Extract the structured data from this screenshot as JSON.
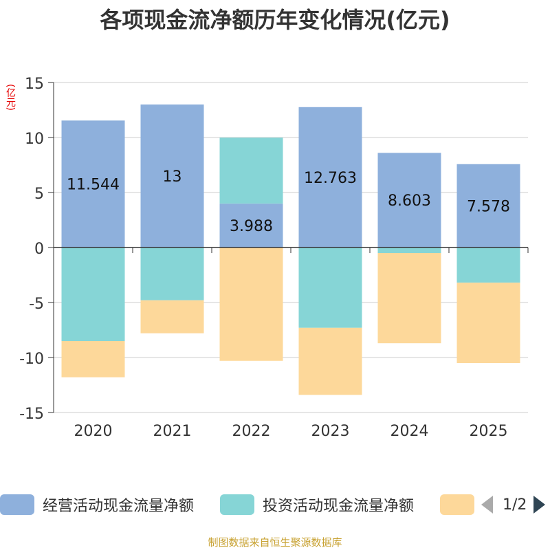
{
  "title": "各项现金流净额历年变化情况(亿元)",
  "unit_label": "(亿元)",
  "source": "制图数据来自恒生聚源数据库",
  "pager": {
    "text": "1/2"
  },
  "colors": {
    "operating": "#8eb0dc",
    "investing": "#86d5d6",
    "financing": "#fdd89a",
    "axis": "#333333",
    "grid": "#cccccc"
  },
  "chart_data": {
    "type": "bar",
    "stacked": true,
    "title": "各项现金流净额历年变化情况(亿元)",
    "ylabel": "(亿元)",
    "ylim": [
      -15,
      15
    ],
    "yticks": [
      15,
      10,
      5,
      0,
      -5,
      -10,
      -15
    ],
    "categories": [
      "2020",
      "2021",
      "2022",
      "2023",
      "2024",
      "2025"
    ],
    "series": [
      {
        "name": "经营活动现金流量净额",
        "values": [
          11.544,
          13,
          3.988,
          12.763,
          8.603,
          7.578
        ],
        "labels": [
          "11.544",
          "13",
          "3.988",
          "12.763",
          "8.603",
          "7.578"
        ]
      },
      {
        "name": "投资活动现金流量净额",
        "values": [
          -8.5,
          -4.8,
          6.0,
          -7.3,
          -0.5,
          -3.2
        ]
      },
      {
        "name": "",
        "values": [
          -3.3,
          -3.0,
          -10.3,
          -6.1,
          -8.2,
          -7.3
        ]
      }
    ]
  }
}
